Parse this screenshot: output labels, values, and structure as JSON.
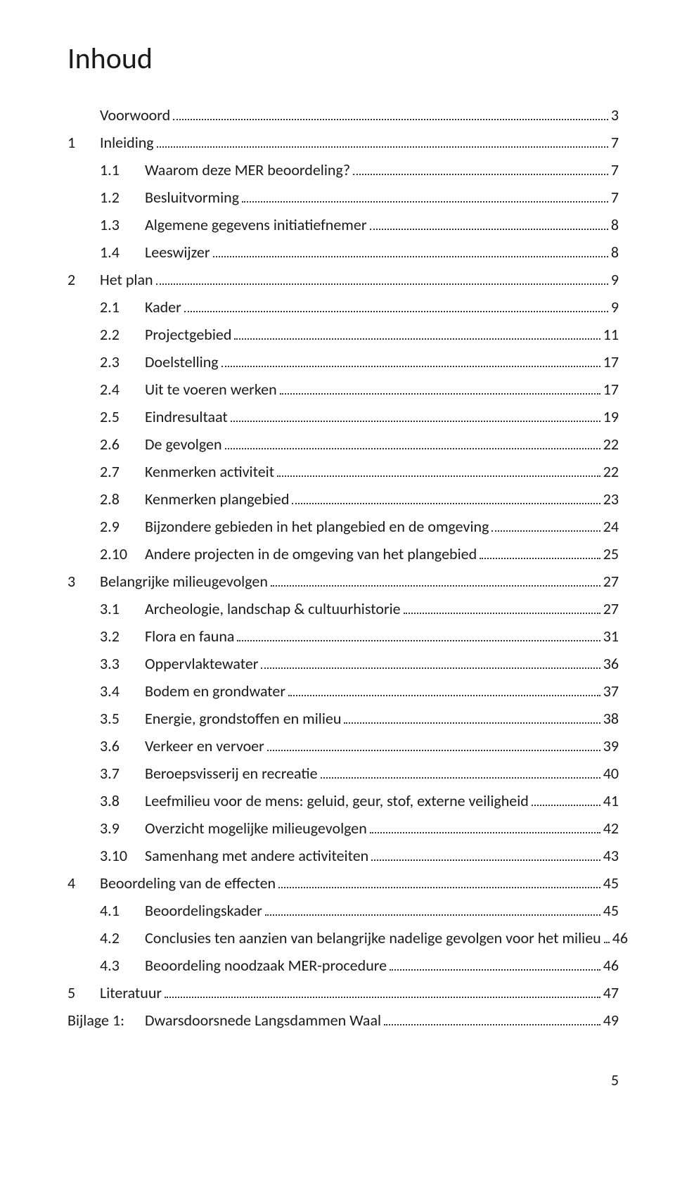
{
  "title": "Inhoud",
  "page_number": "5",
  "font": {
    "body_size_pt": 16,
    "title_size_pt": 32,
    "color": "#1a1a1a",
    "leader_color": "#333333"
  },
  "toc": [
    {
      "chapter": "",
      "section": "",
      "label": "Voorwoord",
      "page": "3",
      "indent": 0
    },
    {
      "chapter": "1",
      "section": "",
      "label": "Inleiding",
      "page": "7",
      "indent": 0
    },
    {
      "chapter": "",
      "section": "1.1",
      "label": "Waarom deze MER beoordeling?",
      "page": "7",
      "indent": 1
    },
    {
      "chapter": "",
      "section": "1.2",
      "label": "Besluitvorming",
      "page": "7",
      "indent": 1
    },
    {
      "chapter": "",
      "section": "1.3",
      "label": "Algemene gegevens initiatiefnemer",
      "page": "8",
      "indent": 1
    },
    {
      "chapter": "",
      "section": "1.4",
      "label": "Leeswijzer",
      "page": "8",
      "indent": 1
    },
    {
      "chapter": "2",
      "section": "",
      "label": "Het plan",
      "page": "9",
      "indent": 0
    },
    {
      "chapter": "",
      "section": "2.1",
      "label": "Kader",
      "page": "9",
      "indent": 1
    },
    {
      "chapter": "",
      "section": "2.2",
      "label": "Projectgebied",
      "page": "11",
      "indent": 1
    },
    {
      "chapter": "",
      "section": "2.3",
      "label": "Doelstelling",
      "page": "17",
      "indent": 1
    },
    {
      "chapter": "",
      "section": "2.4",
      "label": "Uit te voeren werken",
      "page": "17",
      "indent": 1
    },
    {
      "chapter": "",
      "section": "2.5",
      "label": "Eindresultaat",
      "page": "19",
      "indent": 1
    },
    {
      "chapter": "",
      "section": "2.6",
      "label": "De gevolgen",
      "page": "22",
      "indent": 1
    },
    {
      "chapter": "",
      "section": "2.7",
      "label": "Kenmerken activiteit",
      "page": "22",
      "indent": 1
    },
    {
      "chapter": "",
      "section": "2.8",
      "label": "Kenmerken plangebied",
      "page": "23",
      "indent": 1
    },
    {
      "chapter": "",
      "section": "2.9",
      "label": "Bijzondere gebieden in het plangebied en de omgeving",
      "page": "24",
      "indent": 1
    },
    {
      "chapter": "",
      "section": "2.10",
      "label": "Andere projecten in de omgeving van het plangebied",
      "page": "25",
      "indent": 1
    },
    {
      "chapter": "3",
      "section": "",
      "label": "Belangrijke milieugevolgen",
      "page": "27",
      "indent": 0
    },
    {
      "chapter": "",
      "section": "3.1",
      "label": "Archeologie, landschap & cultuurhistorie",
      "page": "27",
      "indent": 1
    },
    {
      "chapter": "",
      "section": "3.2",
      "label": "Flora en fauna",
      "page": "31",
      "indent": 1
    },
    {
      "chapter": "",
      "section": "3.3",
      "label": "Oppervlaktewater",
      "page": "36",
      "indent": 1
    },
    {
      "chapter": "",
      "section": "3.4",
      "label": "Bodem en grondwater",
      "page": "37",
      "indent": 1
    },
    {
      "chapter": "",
      "section": "3.5",
      "label": "Energie, grondstoffen en milieu",
      "page": "38",
      "indent": 1
    },
    {
      "chapter": "",
      "section": "3.6",
      "label": "Verkeer en vervoer",
      "page": "39",
      "indent": 1
    },
    {
      "chapter": "",
      "section": "3.7",
      "label": "Beroepsvisserij en recreatie",
      "page": "40",
      "indent": 1
    },
    {
      "chapter": "",
      "section": "3.8",
      "label": "Leefmilieu voor de mens: geluid, geur, stof, externe veiligheid",
      "page": "41",
      "indent": 1
    },
    {
      "chapter": "",
      "section": "3.9",
      "label": "Overzicht mogelijke milieugevolgen",
      "page": "42",
      "indent": 1
    },
    {
      "chapter": "",
      "section": "3.10",
      "label": "Samenhang met andere activiteiten",
      "page": "43",
      "indent": 1
    },
    {
      "chapter": "4",
      "section": "",
      "label": "Beoordeling van de effecten",
      "page": "45",
      "indent": 0
    },
    {
      "chapter": "",
      "section": "4.1",
      "label": "Beoordelingskader",
      "page": "45",
      "indent": 1
    },
    {
      "chapter": "",
      "section": "4.2",
      "label": "Conclusies ten aanzien van belangrijke nadelige gevolgen voor het milieu",
      "page": "46",
      "indent": 1
    },
    {
      "chapter": "",
      "section": "4.3",
      "label": "Beoordeling noodzaak MER-procedure",
      "page": "46",
      "indent": 1
    },
    {
      "chapter": "5",
      "section": "",
      "label": "Literatuur",
      "page": "47",
      "indent": 0
    },
    {
      "chapter": "",
      "section": "Bijlage 1:",
      "label": "Dwarsdoorsnede Langsdammen Waal",
      "page": "49",
      "indent": 0,
      "wide": true
    }
  ]
}
